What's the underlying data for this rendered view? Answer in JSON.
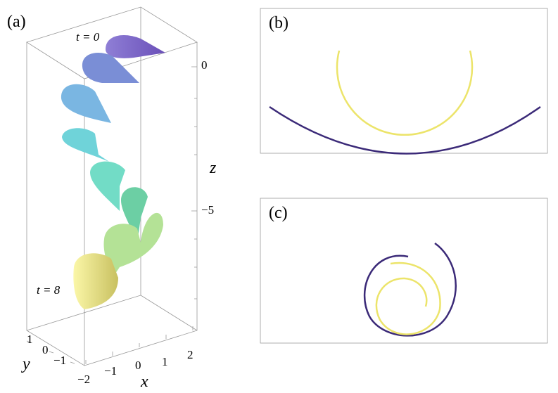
{
  "panels": {
    "a": {
      "label": "(a)",
      "annotations": [
        "t = 0",
        "t = 8"
      ],
      "axes": {
        "x": {
          "label": "x",
          "ticks": [
            "−2",
            "−1",
            "0",
            "1",
            "2"
          ]
        },
        "y": {
          "label": "y",
          "ticks": [
            "1",
            "0",
            "−1"
          ]
        },
        "z": {
          "label": "z",
          "ticks": [
            "0",
            "−5"
          ]
        }
      }
    },
    "b": {
      "label": "(b)"
    },
    "c": {
      "label": "(c)"
    }
  }
}
